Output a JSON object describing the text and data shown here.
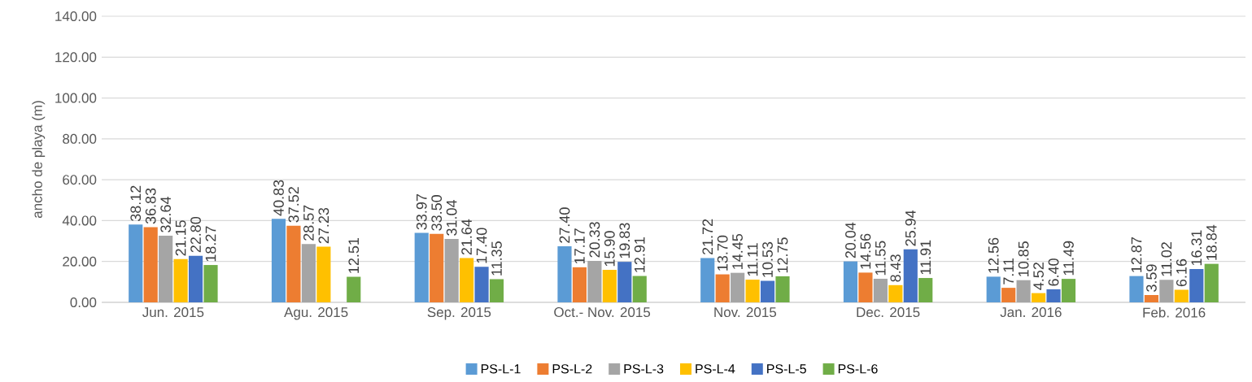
{
  "chart_data": {
    "type": "bar",
    "ylabel": "ancho de playa (m)",
    "categories": [
      "Jun. 2015",
      "Agu. 2015",
      "Sep. 2015",
      "Oct.- Nov. 2015",
      "Nov. 2015",
      "Dec. 2015",
      "Jan. 2016",
      "Feb. 2016"
    ],
    "series": [
      {
        "name": "PS-L-1",
        "color": "#5b9bd5",
        "values": [
          38.12,
          40.83,
          33.97,
          27.4,
          21.72,
          20.04,
          12.56,
          12.87
        ],
        "value_labels": [
          "38.12",
          "40.83",
          "33.97",
          "27.40",
          "21.72",
          "20.04",
          "12.56",
          "12.87"
        ]
      },
      {
        "name": "PS-L-2",
        "color": "#ed7d31",
        "values": [
          36.83,
          37.52,
          33.5,
          17.17,
          13.7,
          14.56,
          7.11,
          3.59
        ],
        "value_labels": [
          "36.83",
          "37.52",
          "33.50",
          "17.17",
          "13.70",
          "14.56",
          "7.11",
          "3.59"
        ]
      },
      {
        "name": "PS-L-3",
        "color": "#a5a5a5",
        "values": [
          32.64,
          28.57,
          31.04,
          20.33,
          14.45,
          11.55,
          10.85,
          11.02
        ],
        "value_labels": [
          "32.64",
          "28.57",
          "31.04",
          "20.33",
          "14.45",
          "11.55",
          "10.85",
          "11.02"
        ]
      },
      {
        "name": "PS-L-4",
        "color": "#ffc000",
        "values": [
          21.15,
          27.23,
          21.64,
          15.9,
          11.11,
          8.43,
          4.52,
          6.16
        ],
        "value_labels": [
          "21.15",
          "27.23",
          "21.64",
          "15.90",
          "11.11",
          "8.43",
          "4.52",
          "6.16"
        ]
      },
      {
        "name": "PS-L-5",
        "color": "#4472c4",
        "values": [
          22.8,
          null,
          17.4,
          19.83,
          10.53,
          25.94,
          6.4,
          16.31
        ],
        "value_labels": [
          "22.80",
          null,
          "17.40",
          "19.83",
          "10.53",
          "25.94",
          "6.40",
          "16.31"
        ]
      },
      {
        "name": "PS-L-6",
        "color": "#70ad47",
        "values": [
          18.27,
          12.51,
          11.35,
          12.91,
          12.75,
          11.91,
          11.49,
          18.84
        ],
        "value_labels": [
          "18.27",
          "12.51",
          "11.35",
          "12.91",
          "12.75",
          "11.91",
          "11.49",
          "18.84"
        ]
      }
    ],
    "ylim": [
      0,
      140
    ],
    "yticks": [
      {
        "value": 0,
        "label": "0.00"
      },
      {
        "value": 20,
        "label": "20.00"
      },
      {
        "value": 40,
        "label": "40.00"
      },
      {
        "value": 60,
        "label": "60.00"
      },
      {
        "value": 80,
        "label": "80.00"
      },
      {
        "value": 100,
        "label": "100.00"
      },
      {
        "value": 120,
        "label": "120.00"
      },
      {
        "value": 140,
        "label": "140.00"
      }
    ],
    "grid": "y",
    "legend": "bottom"
  }
}
